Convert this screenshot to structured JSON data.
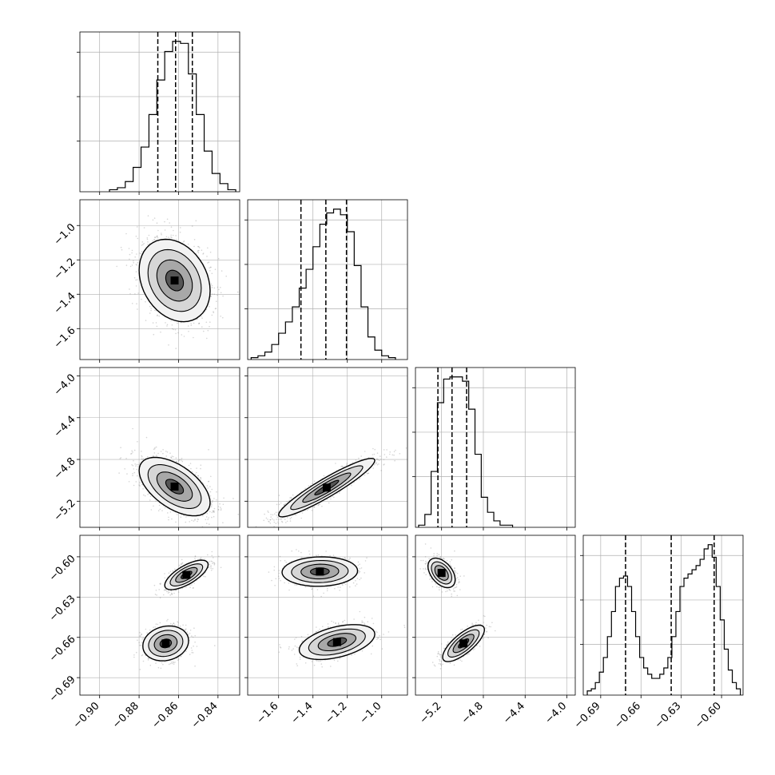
{
  "figure": {
    "type": "corner",
    "variables": [
      {
        "xticks": [
          "−0.90",
          "−0.88",
          "−0.86",
          "−0.84"
        ],
        "xtick_values": [
          -0.9,
          -0.88,
          -0.86,
          -0.84
        ],
        "range": [
          -0.91,
          -0.829
        ],
        "yticks": [],
        "ytick_values": []
      },
      {
        "xticks": [
          "−1.6",
          "−1.4",
          "−1.2",
          "−1.0"
        ],
        "xtick_values": [
          -1.6,
          -1.4,
          -1.2,
          -1.0
        ],
        "range": [
          -1.78,
          -0.85
        ],
        "yticks": [
          "−1.0",
          "−1.2",
          "−1.4",
          "−1.6"
        ],
        "ytick_values": [
          -1.0,
          -1.2,
          -1.4,
          -1.6
        ]
      },
      {
        "xticks": [
          "−5.2",
          "−4.8",
          "−4.4",
          "−4.0"
        ],
        "xtick_values": [
          -5.2,
          -4.8,
          -4.4,
          -4.0
        ],
        "range": [
          -5.45,
          -3.92
        ],
        "yticks": [
          "−4.0",
          "−4.4",
          "−4.8",
          "−5.2"
        ],
        "ytick_values": [
          -4.0,
          -4.4,
          -4.8,
          -5.2
        ]
      },
      {
        "xticks": [
          "−0.69",
          "−0.66",
          "−0.63",
          "−0.60"
        ],
        "xtick_values": [
          -0.69,
          -0.66,
          -0.63,
          -0.6
        ],
        "range": [
          -0.703,
          -0.584
        ],
        "yticks": [
          "−0.60",
          "−0.63",
          "−0.66",
          "−0.69"
        ],
        "ytick_values": [
          -0.6,
          -0.63,
          -0.66,
          -0.69
        ]
      }
    ],
    "colors": {
      "axes": "#000000",
      "grid": "#b0b0b0",
      "points": "#888888",
      "contour": "#000000",
      "hist": "#000000"
    }
  },
  "chart_data": {
    "type": "corner",
    "title": "",
    "grid": true,
    "histograms": [
      {
        "var": 0,
        "bin_edges": [
          -0.895,
          -0.891,
          -0.887,
          -0.883,
          -0.879,
          -0.875,
          -0.871,
          -0.867,
          -0.863,
          -0.859,
          -0.855,
          -0.851,
          -0.847,
          -0.843,
          -0.839,
          -0.835,
          -0.831
        ],
        "counts": [
          1,
          2,
          5,
          12,
          22,
          38,
          55,
          69,
          74,
          73,
          58,
          38,
          20,
          9,
          4,
          1
        ],
        "quantiles": [
          -0.8705,
          -0.8615,
          -0.853
        ]
      },
      {
        "var": 1,
        "bin_edges": [
          -1.76,
          -1.72,
          -1.68,
          -1.64,
          -1.6,
          -1.56,
          -1.52,
          -1.48,
          -1.44,
          -1.4,
          -1.36,
          -1.32,
          -1.28,
          -1.24,
          -1.2,
          -1.16,
          -1.12,
          -1.08,
          -1.04,
          -1.0,
          -0.96,
          -0.92
        ],
        "counts": [
          1,
          2,
          4,
          8,
          14,
          20,
          28,
          38,
          48,
          60,
          72,
          78,
          80,
          77,
          68,
          50,
          28,
          12,
          5,
          2,
          1
        ],
        "quantiles": [
          -1.47,
          -1.325,
          -1.205
        ]
      },
      {
        "var": 2,
        "bin_edges": [
          -5.42,
          -5.36,
          -5.3,
          -5.24,
          -5.18,
          -5.12,
          -5.06,
          -5.0,
          -4.94,
          -4.88,
          -4.82,
          -4.76,
          -4.7,
          -4.64,
          -4.58,
          -4.52
        ],
        "counts": [
          1,
          6,
          26,
          58,
          69,
          70,
          70,
          68,
          55,
          34,
          14,
          7,
          3,
          1,
          1
        ],
        "quantiles": [
          -5.235,
          -5.1,
          -4.96
        ]
      },
      {
        "var": 3,
        "bin_edges": [
          -0.7,
          -0.697,
          -0.694,
          -0.691,
          -0.688,
          -0.685,
          -0.682,
          -0.679,
          -0.676,
          -0.673,
          -0.67,
          -0.667,
          -0.664,
          -0.661,
          -0.658,
          -0.655,
          -0.652,
          -0.649,
          -0.646,
          -0.643,
          -0.64,
          -0.637,
          -0.634,
          -0.631,
          -0.628,
          -0.625,
          -0.622,
          -0.619,
          -0.616,
          -0.613,
          -0.61,
          -0.607,
          -0.604,
          -0.601,
          -0.598,
          -0.595,
          -0.592,
          -0.589,
          -0.586
        ],
        "counts": [
          2,
          3,
          6,
          11,
          18,
          28,
          40,
          52,
          56,
          57,
          52,
          40,
          28,
          18,
          13,
          10,
          8,
          8,
          10,
          13,
          18,
          28,
          40,
          52,
          56,
          58,
          60,
          62,
          65,
          70,
          72,
          66,
          52,
          36,
          22,
          12,
          6,
          3
        ],
        "quantiles": [
          -0.6715,
          -0.6375,
          -0.6055
        ]
      }
    ],
    "scatter_2d": [
      {
        "x_var": 0,
        "y_var": 1,
        "modes": [
          {
            "center": [
              -0.862,
              -1.32
            ],
            "sigma": [
              0.009,
              0.12
            ],
            "corr": -0.25
          }
        ]
      },
      {
        "x_var": 0,
        "y_var": 2,
        "modes": [
          {
            "center": [
              -0.862,
              -5.06
            ],
            "sigma": [
              0.009,
              0.14
            ],
            "corr": -0.55
          }
        ]
      },
      {
        "x_var": 1,
        "y_var": 2,
        "modes": [
          {
            "center": [
              -1.32,
              -5.07
            ],
            "sigma": [
              0.14,
              0.14
            ],
            "corr": 0.93
          }
        ]
      },
      {
        "x_var": 0,
        "y_var": 3,
        "modes": [
          {
            "center": [
              -0.856,
              -0.6135
            ],
            "sigma": [
              0.0055,
              0.0055
            ],
            "corr": 0.7
          },
          {
            "center": [
              -0.8665,
              -0.6645
            ],
            "sigma": [
              0.0058,
              0.0065
            ],
            "corr": 0.15
          }
        ]
      },
      {
        "x_var": 1,
        "y_var": 3,
        "modes": [
          {
            "center": [
              -1.36,
              -0.611
            ],
            "sigma": [
              0.11,
              0.0055
            ],
            "corr": 0.05
          },
          {
            "center": [
              -1.26,
              -0.6635
            ],
            "sigma": [
              0.11,
              0.0065
            ],
            "corr": 0.45
          }
        ]
      },
      {
        "x_var": 2,
        "y_var": 3,
        "modes": [
          {
            "center": [
              -5.2,
              -0.612
            ],
            "sigma": [
              0.065,
              0.0055
            ],
            "corr": -0.45
          },
          {
            "center": [
              -4.99,
              -0.6645
            ],
            "sigma": [
              0.1,
              0.0068
            ],
            "corr": 0.75
          }
        ]
      }
    ]
  }
}
